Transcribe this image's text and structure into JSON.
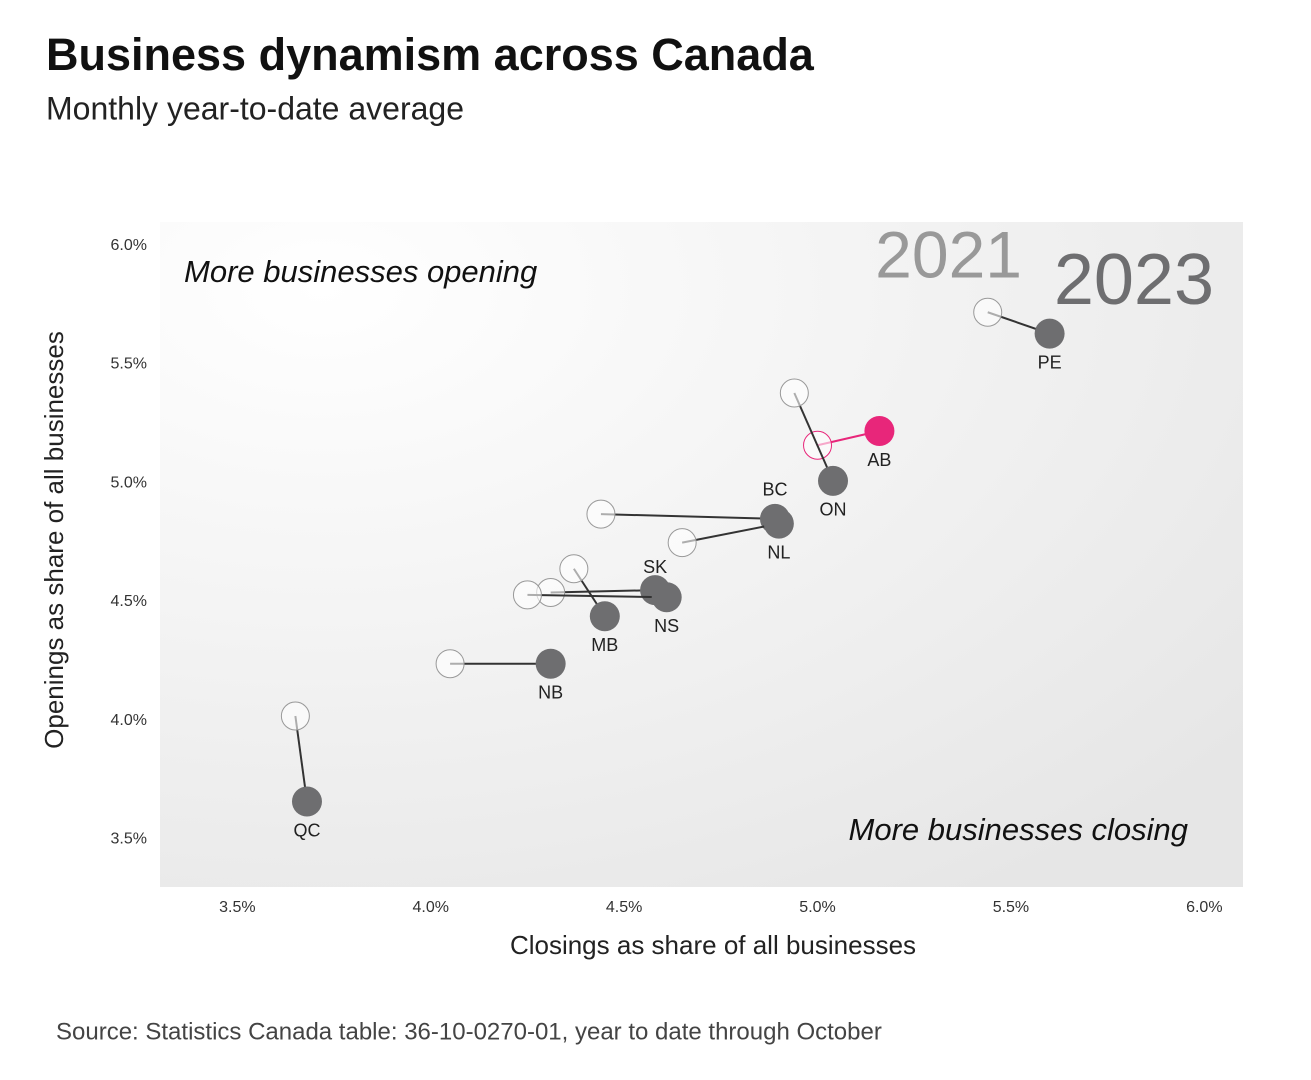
{
  "chart_data": {
    "type": "connected-scatter",
    "title": "Business dynamism across Canada",
    "subtitle": "Monthly year-to-date average",
    "x_label": "Closings as share of all businesses",
    "y_label": "Openings as share of all businesses",
    "annotations": [
      "More businesses opening",
      "More businesses closing"
    ],
    "source": "Source: Statistics Canada table: 36-10-0270-01, year to date through October",
    "categories": [
      "PE",
      "AB",
      "ON",
      "BC",
      "NL",
      "SK",
      "NS",
      "MB",
      "NB",
      "QC"
    ],
    "series": [
      {
        "name": "2021",
        "color": "#999999",
        "x": [
          5.44,
          5.0,
          4.94,
          4.44,
          4.65,
          4.31,
          4.25,
          4.37,
          4.05,
          3.65
        ],
        "values": [
          5.72,
          5.16,
          5.38,
          4.87,
          4.75,
          4.54,
          4.53,
          4.64,
          4.24,
          4.02
        ],
        "colors": [
          "#999999",
          "#e8267a",
          "#999999",
          "#999999",
          "#999999",
          "#999999",
          "#999999",
          "#999999",
          "#999999",
          "#999999"
        ]
      },
      {
        "name": "2023",
        "color": "#6e6e70",
        "x": [
          5.6,
          5.16,
          5.04,
          4.89,
          4.9,
          4.58,
          4.61,
          4.45,
          4.31,
          3.68
        ],
        "values": [
          5.63,
          5.22,
          5.01,
          4.85,
          4.83,
          4.55,
          4.52,
          4.44,
          4.24,
          3.66
        ],
        "colors": [
          "#6e6e70",
          "#e8267a",
          "#6e6e70",
          "#6e6e70",
          "#6e6e70",
          "#6e6e70",
          "#6e6e70",
          "#6e6e70",
          "#6e6e70",
          "#6e6e70"
        ]
      }
    ],
    "xlim": [
      3.3,
      6.1
    ],
    "ylim": [
      3.3,
      6.1
    ],
    "xticks": [
      {
        "value": 3.5,
        "label": "3.5%"
      },
      {
        "value": 4.0,
        "label": "4.0%"
      },
      {
        "value": 4.5,
        "label": "4.5%"
      },
      {
        "value": 5.0,
        "label": "5.0%"
      },
      {
        "value": 5.5,
        "label": "5.5%"
      },
      {
        "value": 6.0,
        "label": "6.0%"
      }
    ],
    "yticks": [
      {
        "value": 3.5,
        "label": "3.5%"
      },
      {
        "value": 4.0,
        "label": "4.0%"
      },
      {
        "value": 4.5,
        "label": "4.5%"
      },
      {
        "value": 5.0,
        "label": "5.0%"
      },
      {
        "value": 5.5,
        "label": "5.5%"
      },
      {
        "value": 6.0,
        "label": "6.0%"
      }
    ]
  }
}
